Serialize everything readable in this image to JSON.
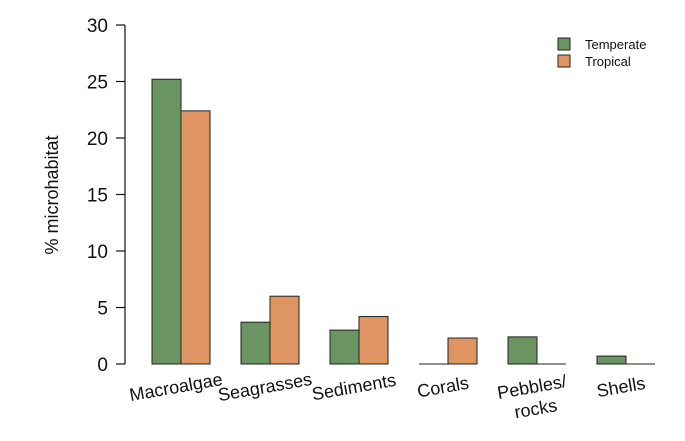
{
  "chart_data": {
    "type": "bar",
    "title": "",
    "xlabel": "",
    "ylabel": "% microhabitat",
    "ylim": [
      0,
      30
    ],
    "yticks": [
      0,
      5,
      10,
      15,
      20,
      25,
      30
    ],
    "categories": [
      [
        "Macroalgae"
      ],
      [
        "Seagrasses"
      ],
      [
        "Sediments"
      ],
      [
        "Corals"
      ],
      [
        "Pebbles/",
        "rocks"
      ],
      [
        "Shells"
      ]
    ],
    "series": [
      {
        "name": "Temperate",
        "color": "#6b9463",
        "values": [
          25.2,
          3.7,
          3.0,
          0.0,
          2.4,
          0.7
        ]
      },
      {
        "name": "Tropical",
        "color": "#df9562",
        "values": [
          22.4,
          6.0,
          4.2,
          2.3,
          0.0,
          0.0
        ]
      }
    ],
    "grid": false,
    "legend_position": "top-right"
  }
}
